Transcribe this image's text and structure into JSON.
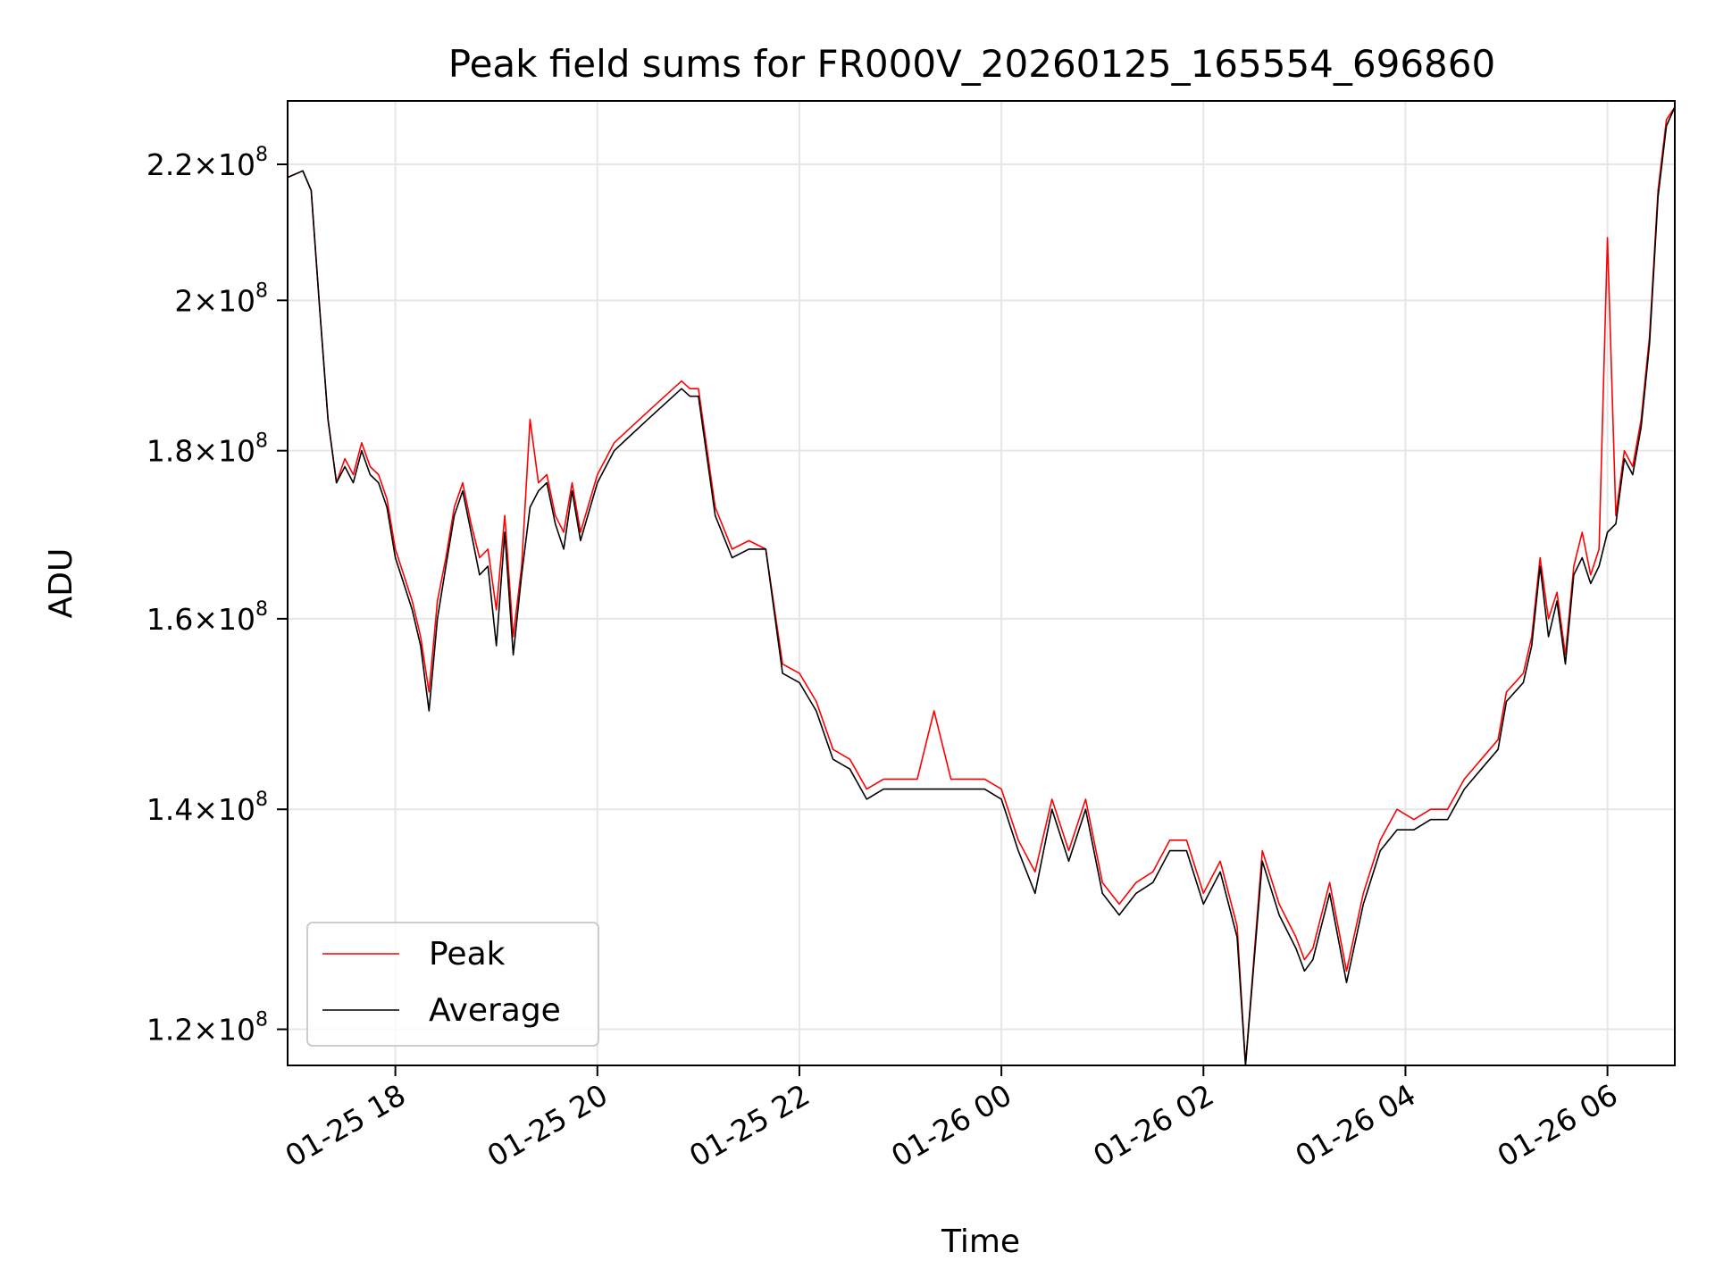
{
  "chart_data": {
    "type": "line",
    "title": "Peak field sums for FR000V_20260125_165554_696860",
    "xlabel": "Time",
    "ylabel": "ADU",
    "yscale": "log",
    "grid": true,
    "legend_position": "lower-left",
    "x_range": [
      "2026-01-25 16:56",
      "2026-01-26 06:40"
    ],
    "ylim": [
      117000000,
      230000000
    ],
    "x_ticks": [
      {
        "t": "2026-01-25 18:00",
        "label": "01-25 18"
      },
      {
        "t": "2026-01-25 20:00",
        "label": "01-25 20"
      },
      {
        "t": "2026-01-25 22:00",
        "label": "01-25 22"
      },
      {
        "t": "2026-01-26 00:00",
        "label": "01-26 00"
      },
      {
        "t": "2026-01-26 02:00",
        "label": "01-26 02"
      },
      {
        "t": "2026-01-26 04:00",
        "label": "01-26 04"
      },
      {
        "t": "2026-01-26 06:00",
        "label": "01-26 06"
      }
    ],
    "y_ticks": [
      {
        "value": 120000000,
        "mantissa": "1.2",
        "exp": "8"
      },
      {
        "value": 140000000,
        "mantissa": "1.4",
        "exp": "8"
      },
      {
        "value": 160000000,
        "mantissa": "1.6",
        "exp": "8"
      },
      {
        "value": 180000000,
        "mantissa": "1.8",
        "exp": "8"
      },
      {
        "value": 200000000,
        "mantissa": "2",
        "exp": "8"
      },
      {
        "value": 220000000,
        "mantissa": "2.2",
        "exp": "8"
      }
    ],
    "times": [
      "2026-01-25 16:56",
      "2026-01-25 17:05",
      "2026-01-25 17:10",
      "2026-01-25 17:15",
      "2026-01-25 17:20",
      "2026-01-25 17:25",
      "2026-01-25 17:30",
      "2026-01-25 17:35",
      "2026-01-25 17:40",
      "2026-01-25 17:45",
      "2026-01-25 17:50",
      "2026-01-25 17:55",
      "2026-01-25 18:00",
      "2026-01-25 18:05",
      "2026-01-25 18:10",
      "2026-01-25 18:15",
      "2026-01-25 18:20",
      "2026-01-25 18:25",
      "2026-01-25 18:30",
      "2026-01-25 18:35",
      "2026-01-25 18:40",
      "2026-01-25 18:45",
      "2026-01-25 18:50",
      "2026-01-25 18:55",
      "2026-01-25 19:00",
      "2026-01-25 19:05",
      "2026-01-25 19:10",
      "2026-01-25 19:15",
      "2026-01-25 19:20",
      "2026-01-25 19:25",
      "2026-01-25 19:30",
      "2026-01-25 19:35",
      "2026-01-25 19:40",
      "2026-01-25 19:45",
      "2026-01-25 19:50",
      "2026-01-25 20:00",
      "2026-01-25 20:10",
      "2026-01-25 20:20",
      "2026-01-25 20:30",
      "2026-01-25 20:40",
      "2026-01-25 20:50",
      "2026-01-25 20:55",
      "2026-01-25 21:00",
      "2026-01-25 21:10",
      "2026-01-25 21:20",
      "2026-01-25 21:30",
      "2026-01-25 21:40",
      "2026-01-25 21:50",
      "2026-01-25 22:00",
      "2026-01-25 22:10",
      "2026-01-25 22:20",
      "2026-01-25 22:30",
      "2026-01-25 22:40",
      "2026-01-25 22:50",
      "2026-01-25 23:00",
      "2026-01-25 23:10",
      "2026-01-25 23:20",
      "2026-01-25 23:30",
      "2026-01-25 23:40",
      "2026-01-25 23:50",
      "2026-01-26 00:00",
      "2026-01-26 00:10",
      "2026-01-26 00:20",
      "2026-01-26 00:30",
      "2026-01-26 00:40",
      "2026-01-26 00:50",
      "2026-01-26 01:00",
      "2026-01-26 01:10",
      "2026-01-26 01:20",
      "2026-01-26 01:30",
      "2026-01-26 01:40",
      "2026-01-26 01:50",
      "2026-01-26 02:00",
      "2026-01-26 02:10",
      "2026-01-26 02:20",
      "2026-01-26 02:25",
      "2026-01-26 02:35",
      "2026-01-26 02:45",
      "2026-01-26 02:55",
      "2026-01-26 03:00",
      "2026-01-26 03:05",
      "2026-01-26 03:15",
      "2026-01-26 03:25",
      "2026-01-26 03:35",
      "2026-01-26 03:45",
      "2026-01-26 03:55",
      "2026-01-26 04:05",
      "2026-01-26 04:15",
      "2026-01-26 04:25",
      "2026-01-26 04:35",
      "2026-01-26 04:45",
      "2026-01-26 04:55",
      "2026-01-26 05:00",
      "2026-01-26 05:05",
      "2026-01-26 05:10",
      "2026-01-26 05:15",
      "2026-01-26 05:20",
      "2026-01-26 05:25",
      "2026-01-26 05:30",
      "2026-01-26 05:35",
      "2026-01-26 05:40",
      "2026-01-26 05:45",
      "2026-01-26 05:50",
      "2026-01-26 05:55",
      "2026-01-26 06:00",
      "2026-01-26 06:05",
      "2026-01-26 06:10",
      "2026-01-26 06:15",
      "2026-01-26 06:20",
      "2026-01-26 06:25",
      "2026-01-26 06:30",
      "2026-01-26 06:35",
      "2026-01-26 06:40"
    ],
    "series": [
      {
        "name": "Peak",
        "color": "#ff0000",
        "values": [
          218000000,
          219000000,
          216000000,
          199000000,
          184000000,
          176000000,
          179000000,
          177000000,
          181000000,
          178000000,
          177000000,
          174000000,
          168000000,
          165000000,
          162000000,
          158000000,
          152000000,
          162000000,
          167000000,
          173000000,
          176000000,
          171000000,
          167000000,
          168000000,
          161000000,
          172000000,
          158000000,
          166000000,
          184000000,
          176000000,
          177000000,
          172000000,
          170000000,
          176000000,
          170000000,
          177000000,
          181000000,
          183000000,
          185000000,
          187000000,
          189000000,
          188000000,
          188000000,
          173000000,
          168000000,
          169000000,
          168000000,
          155000000,
          154000000,
          151000000,
          146000000,
          145000000,
          142000000,
          143000000,
          143000000,
          143000000,
          150000000,
          143000000,
          143000000,
          143000000,
          142000000,
          137000000,
          134000000,
          141000000,
          136000000,
          141000000,
          133000000,
          131000000,
          133000000,
          134000000,
          137000000,
          137000000,
          132000000,
          135000000,
          129000000,
          117000000,
          136000000,
          131000000,
          128000000,
          126000000,
          127000000,
          133000000,
          125000000,
          132000000,
          137000000,
          140000000,
          139000000,
          140000000,
          140000000,
          143000000,
          145000000,
          147000000,
          152000000,
          153000000,
          154000000,
          158000000,
          167000000,
          160000000,
          163000000,
          156000000,
          166000000,
          170000000,
          165000000,
          168000000,
          209000000,
          172000000,
          180000000,
          178000000,
          184000000,
          195000000,
          216000000,
          227000000,
          229000000
        ]
      },
      {
        "name": "Average",
        "color": "#000000",
        "values": [
          218000000,
          219000000,
          216000000,
          199000000,
          184000000,
          176000000,
          178000000,
          176000000,
          180000000,
          177000000,
          176000000,
          173000000,
          167000000,
          164000000,
          161000000,
          157000000,
          150000000,
          160000000,
          166000000,
          172000000,
          175000000,
          170000000,
          165000000,
          166000000,
          157000000,
          170000000,
          156000000,
          165000000,
          173000000,
          175000000,
          176000000,
          171000000,
          168000000,
          175000000,
          169000000,
          176000000,
          180000000,
          182000000,
          184000000,
          186000000,
          188000000,
          187000000,
          187000000,
          172000000,
          167000000,
          168000000,
          168000000,
          154000000,
          153000000,
          150000000,
          145000000,
          144000000,
          141000000,
          142000000,
          142000000,
          142000000,
          142000000,
          142000000,
          142000000,
          142000000,
          141000000,
          136000000,
          132000000,
          140000000,
          135000000,
          140000000,
          132000000,
          130000000,
          132000000,
          133000000,
          136000000,
          136000000,
          131000000,
          134000000,
          128000000,
          117000000,
          135000000,
          130000000,
          127000000,
          125000000,
          126000000,
          132000000,
          124000000,
          131000000,
          136000000,
          138000000,
          138000000,
          139000000,
          139000000,
          142000000,
          144000000,
          146000000,
          151000000,
          152000000,
          153000000,
          157000000,
          166000000,
          158000000,
          162000000,
          155000000,
          165000000,
          167000000,
          164000000,
          166000000,
          170000000,
          171000000,
          179000000,
          177000000,
          183000000,
          194000000,
          215000000,
          226000000,
          229000000
        ]
      }
    ]
  }
}
